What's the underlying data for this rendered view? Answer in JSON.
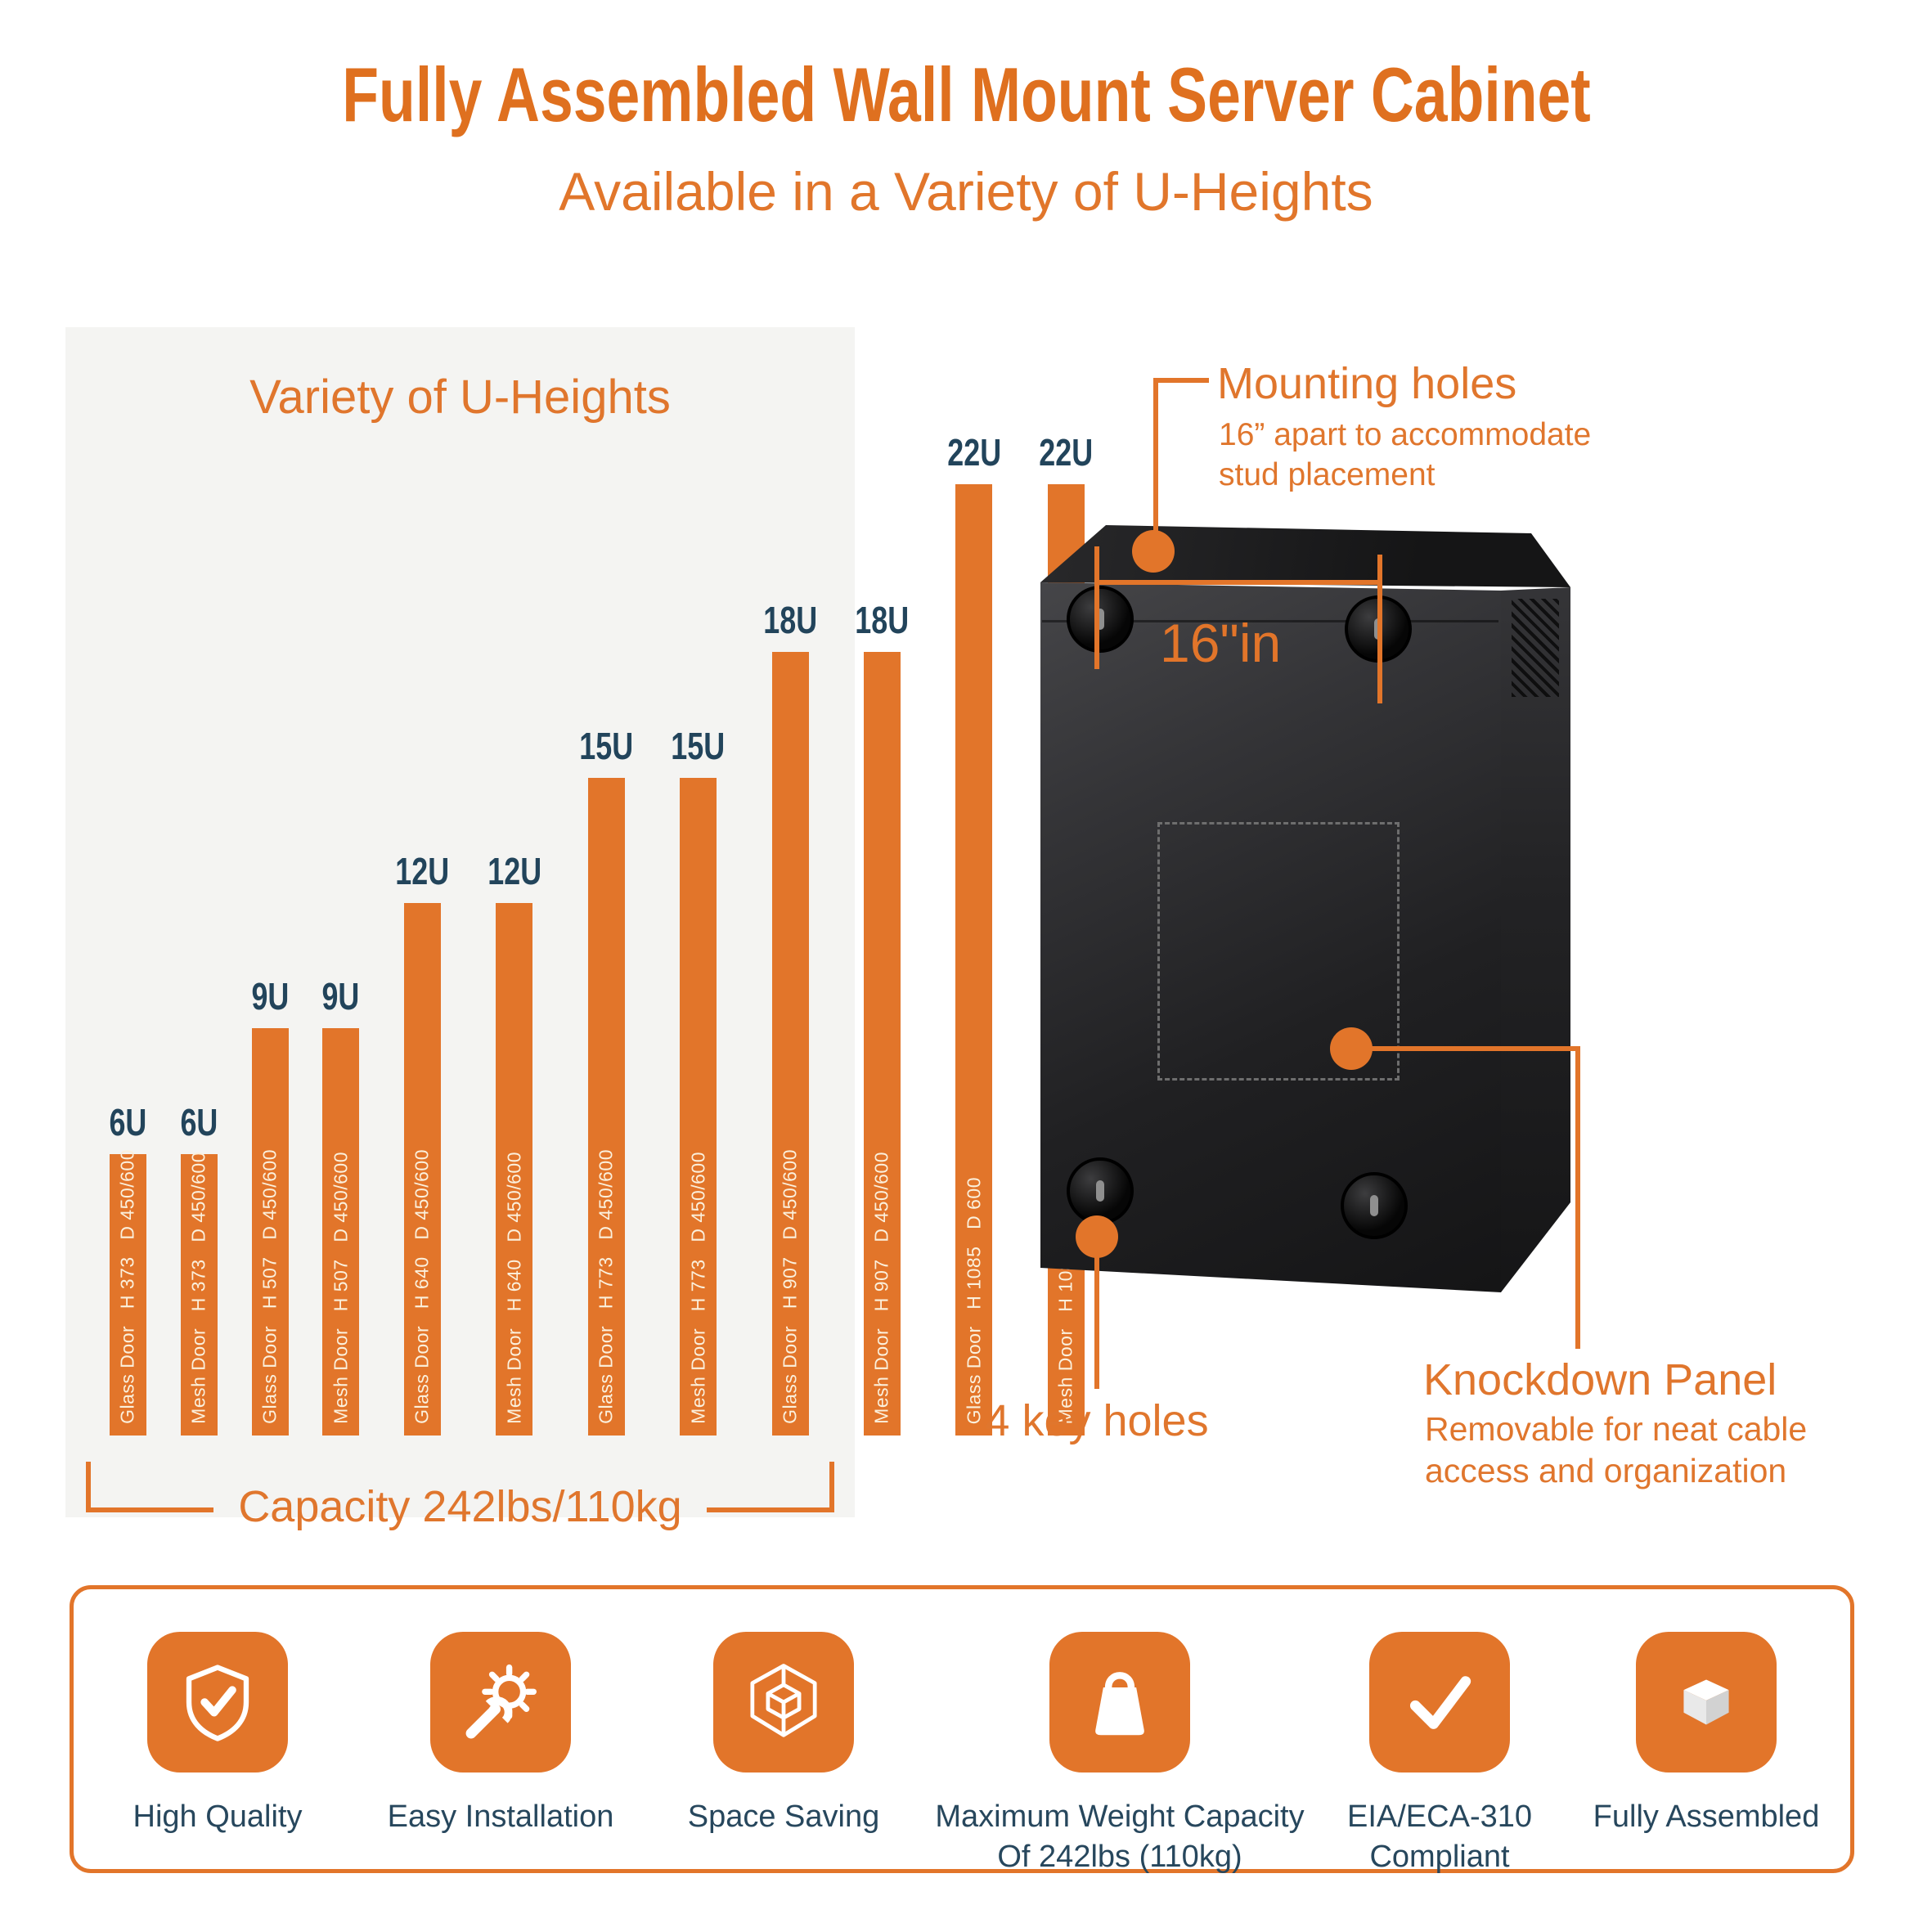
{
  "page": {
    "title": "Fully Assembled Wall Mount Server Cabinet",
    "subtitle": "Available in a Variety of U-Heights"
  },
  "chart_data": {
    "type": "bar",
    "title": "Variety of U-Heights",
    "capacity_label": "Capacity 242lbs/110kg",
    "categories": [
      "6U",
      "6U",
      "9U",
      "9U",
      "12U",
      "12U",
      "15U",
      "15U",
      "18U",
      "18U",
      "22U",
      "22U"
    ],
    "bars": [
      {
        "u": "6U",
        "door": "Glass Door",
        "height_mm": 373,
        "depth_mm": "450/600",
        "label": "Glass Door   H 373   D 450/600"
      },
      {
        "u": "6U",
        "door": "Mesh Door",
        "height_mm": 373,
        "depth_mm": "450/600",
        "label": "Mesh Door   H 373   D 450/600"
      },
      {
        "u": "9U",
        "door": "Glass Door",
        "height_mm": 507,
        "depth_mm": "450/600",
        "label": "Glass Door   H 507   D 450/600"
      },
      {
        "u": "9U",
        "door": "Mesh Door",
        "height_mm": 507,
        "depth_mm": "450/600",
        "label": "Mesh Door   H 507   D 450/600"
      },
      {
        "u": "12U",
        "door": "Glass Door",
        "height_mm": 640,
        "depth_mm": "450/600",
        "label": "Glass Door   H 640   D 450/600"
      },
      {
        "u": "12U",
        "door": "Mesh Door",
        "height_mm": 640,
        "depth_mm": "450/600",
        "label": "Mesh Door   H 640   D 450/600"
      },
      {
        "u": "15U",
        "door": "Glass Door",
        "height_mm": 773,
        "depth_mm": "450/600",
        "label": "Glass Door   H 773   D 450/600"
      },
      {
        "u": "15U",
        "door": "Mesh Door",
        "height_mm": 773,
        "depth_mm": "450/600",
        "label": "Mesh Door   H 773   D 450/600"
      },
      {
        "u": "18U",
        "door": "Glass Door",
        "height_mm": 907,
        "depth_mm": "450/600",
        "label": "Glass Door   H 907   D 450/600"
      },
      {
        "u": "18U",
        "door": "Mesh Door",
        "height_mm": 907,
        "depth_mm": "450/600",
        "label": "Mesh Door   H 907   D 450/600"
      },
      {
        "u": "22U",
        "door": "Glass Door",
        "height_mm": 1085,
        "depth_mm": "600",
        "label": "Glass Door   H 1085   D 600"
      },
      {
        "u": "22U",
        "door": "Mesh Door",
        "height_mm": 1085,
        "depth_mm": "600",
        "label": "Mesh Door   H 1085   D 600"
      }
    ]
  },
  "cabinet": {
    "mounting_title": "Mounting holes",
    "mounting_desc": "16” apart to accommodate stud placement",
    "dimension_label": "16\"in",
    "keyholes_label": "4 key holes",
    "knockdown_title": "Knockdown Panel",
    "knockdown_desc": "Removable for neat cable access and organization"
  },
  "features": [
    {
      "icon": "shield-check-icon",
      "label": "High Quality"
    },
    {
      "icon": "wrench-gear-icon",
      "label": "Easy Installation"
    },
    {
      "icon": "cube-icon",
      "label": "Space Saving"
    },
    {
      "icon": "weight-icon",
      "label": "Maximum Weight Capacity Of 242lbs (110kg)"
    },
    {
      "icon": "checkmark-icon",
      "label": "EIA/ECA-310 Compliant"
    },
    {
      "icon": "box-icon",
      "label": "Fully Assembled"
    }
  ],
  "colors": {
    "accent_orange": "#E2752A",
    "title_orange": "#DF701F",
    "navy_text": "#22445B",
    "panel_gray": "#F4F4F2",
    "bar_label_cream": "#FBF0DC"
  }
}
